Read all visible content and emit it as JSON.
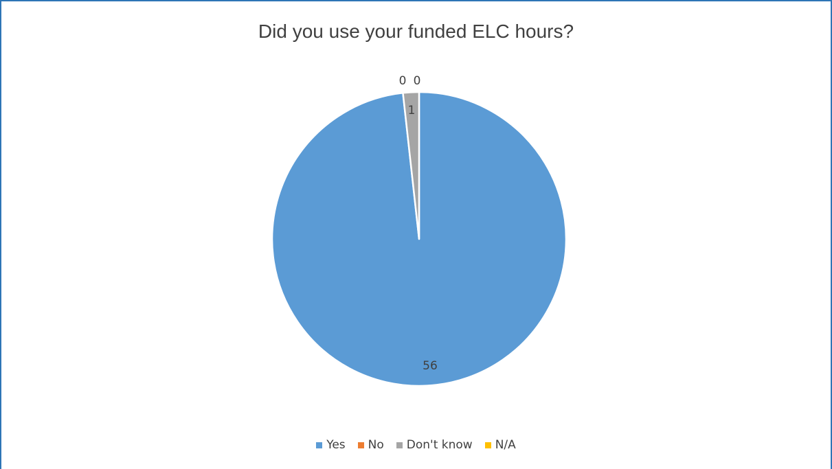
{
  "chart_data": {
    "type": "pie",
    "title": "Did you use your funded ELC hours?",
    "categories": [
      "Yes",
      "No",
      "Don't know",
      "N/A"
    ],
    "values": [
      56,
      0,
      1,
      0
    ],
    "colors": [
      "#5b9bd5",
      "#ed7d31",
      "#a5a5a5",
      "#ffc000"
    ],
    "data_labels": [
      "56",
      "0",
      "1",
      "0"
    ],
    "legend_position": "bottom"
  }
}
